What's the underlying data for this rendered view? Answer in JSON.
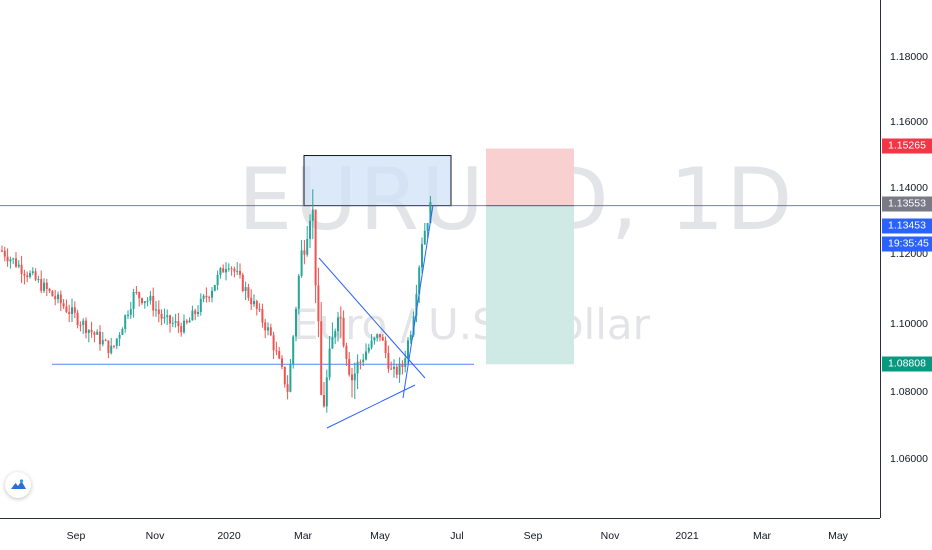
{
  "chart": {
    "symbol": "EURUSD",
    "interval": "1D",
    "watermark": "EURUSD, 1D",
    "description": "Euro / U.S. Dollar"
  },
  "price_axis": {
    "ticks": [
      "1.18000",
      "1.16000",
      "1.14000",
      "1.12000",
      "1.10000",
      "1.08000",
      "1.06000"
    ],
    "tick_values": [
      1.18,
      1.16,
      1.14,
      1.12,
      1.1,
      1.08,
      1.06
    ],
    "labels": {
      "stop": {
        "text": "1.15265",
        "color": "#f23645"
      },
      "crosshair": {
        "text": "1.13553",
        "color": "#787b86"
      },
      "last": {
        "text": "1.13453",
        "color": "#2962ff"
      },
      "countdown": {
        "text": "19:35:45",
        "color": "#2962ff"
      },
      "target": {
        "text": "1.08808",
        "color": "#089981"
      }
    }
  },
  "time_axis": {
    "ticks": [
      "Sep",
      "Nov",
      "2020",
      "Mar",
      "May",
      "Jul",
      "Sep",
      "Nov",
      "2021",
      "Mar",
      "May"
    ]
  },
  "drawings": {
    "support_level": 1.088,
    "horizontal_line": 1.1355,
    "resistance_zone": [
      1.1355,
      1.1505
    ],
    "position_entry": 1.1355,
    "position_stop": 1.1526,
    "position_target": 1.088
  },
  "colors": {
    "up_candle": "#26a69a",
    "down_candle": "#ef5350",
    "drawing_line": "#2962ff",
    "zone_fill": "#cfe2f7",
    "stop_zone": "#f9d0d0",
    "target_zone": "#cfeae5"
  },
  "icons": {
    "logo": "tradingview-logo-icon"
  }
}
